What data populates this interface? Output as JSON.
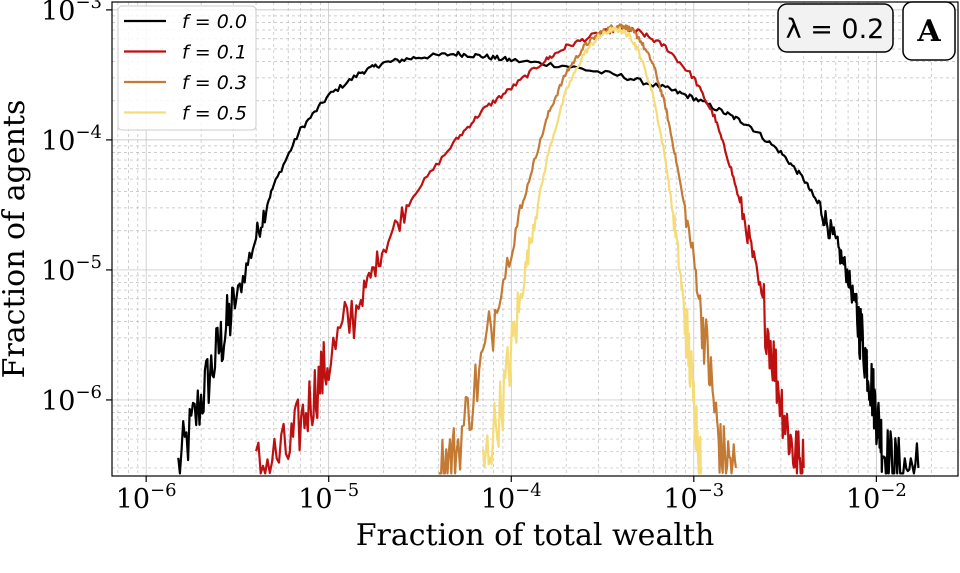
{
  "chart_data": {
    "type": "line",
    "title": "",
    "xlabel": "Fraction of total wealth",
    "ylabel": "Fraction of agents",
    "xscale": "log",
    "yscale": "log",
    "xlim": [
      6.5e-07,
      0.028
    ],
    "ylim": [
      2.6e-07,
      0.00115
    ],
    "grid": true,
    "legend_position": "top-left",
    "x_ticks": [
      {
        "value": 1e-06,
        "base": "10",
        "exp": "−6"
      },
      {
        "value": 1e-05,
        "base": "10",
        "exp": "−5"
      },
      {
        "value": 0.0001,
        "base": "10",
        "exp": "−4"
      },
      {
        "value": 0.001,
        "base": "10",
        "exp": "−3"
      },
      {
        "value": 0.01,
        "base": "10",
        "exp": "−2"
      }
    ],
    "y_ticks": [
      {
        "value": 1e-06,
        "base": "10",
        "exp": "−6"
      },
      {
        "value": 1e-05,
        "base": "10",
        "exp": "−5"
      },
      {
        "value": 0.0001,
        "base": "10",
        "exp": "−4"
      },
      {
        "value": 0.001,
        "base": "10",
        "exp": "−3"
      }
    ],
    "series": [
      {
        "name": "f = 0.0",
        "color": "#000000",
        "x": [
          1.5e-06,
          2e-06,
          2.5e-06,
          3e-06,
          4e-06,
          5e-06,
          7e-06,
          1e-05,
          1.5e-05,
          2e-05,
          3e-05,
          5e-05,
          7e-05,
          0.0001,
          0.0002,
          0.0004,
          0.0007,
          0.001,
          0.0015,
          0.002,
          0.003,
          0.004,
          0.005,
          0.006,
          0.007,
          0.008,
          0.009,
          0.01,
          0.011,
          0.013,
          0.017
        ],
        "y": [
          3e-07,
          1e-06,
          2.5e-06,
          5e-06,
          1.8e-05,
          4.5e-05,
          0.00012,
          0.00022,
          0.00033,
          0.00039,
          0.00043,
          0.00046,
          0.00044,
          0.00041,
          0.00037,
          0.00031,
          0.00025,
          0.00021,
          0.00016,
          0.00013,
          8e-05,
          5e-05,
          2.9e-05,
          1.6e-05,
          9e-06,
          4e-06,
          1.8e-06,
          8e-07,
          4e-07,
          3e-07,
          3e-07
        ]
      },
      {
        "name": "f = 0.1",
        "color": "#bd1111",
        "x": [
          4e-06,
          6e-06,
          8e-06,
          1e-05,
          1.5e-05,
          2e-05,
          3e-05,
          5e-05,
          7e-05,
          0.0001,
          0.00015,
          0.0002,
          0.0003,
          0.0004,
          0.0005,
          0.0007,
          0.001,
          0.0013,
          0.0016,
          0.002,
          0.0025,
          0.003,
          0.0035,
          0.004
        ],
        "y": [
          3e-07,
          4e-07,
          1e-06,
          2e-06,
          6e-06,
          1.5e-05,
          4e-05,
          0.0001,
          0.00017,
          0.00025,
          0.0004,
          0.00052,
          0.00066,
          0.00072,
          0.00068,
          0.00052,
          0.0003,
          0.00015,
          6e-05,
          1.8e-05,
          4e-06,
          1e-06,
          4e-07,
          3e-07
        ]
      },
      {
        "name": "f = 0.3",
        "color": "#c37a34",
        "x": [
          4e-05,
          5e-05,
          7e-05,
          0.0001,
          0.00013,
          0.00016,
          0.0002,
          0.00025,
          0.0003,
          0.00035,
          0.0004,
          0.00045,
          0.0005,
          0.0006,
          0.0007,
          0.0008,
          0.001,
          0.0012,
          0.0014,
          0.0017
        ],
        "y": [
          3e-07,
          4e-07,
          2e-06,
          1.5e-05,
          6e-05,
          0.00016,
          0.00033,
          0.00052,
          0.00065,
          0.00073,
          0.00076,
          0.00071,
          0.00061,
          0.00038,
          0.00018,
          7e-05,
          1.2e-05,
          2e-06,
          4e-07,
          3e-07
        ]
      },
      {
        "name": "f = 0.5",
        "color": "#f5dc78",
        "x": [
          7e-05,
          9e-05,
          0.00011,
          0.00013,
          0.00016,
          0.0002,
          0.00025,
          0.0003,
          0.00035,
          0.0004,
          0.00045,
          0.0005,
          0.0006,
          0.0007,
          0.0008,
          0.0009,
          0.001,
          0.0011
        ],
        "y": [
          3e-07,
          1e-06,
          5e-06,
          2e-05,
          8e-05,
          0.00024,
          0.00046,
          0.00062,
          0.0007,
          0.0007,
          0.00062,
          0.00048,
          0.00022,
          7e-05,
          1.8e-05,
          4e-06,
          1e-06,
          3e-07
        ]
      }
    ]
  },
  "badge": {
    "param_label": "λ = 0.2",
    "panel_label": "A"
  }
}
